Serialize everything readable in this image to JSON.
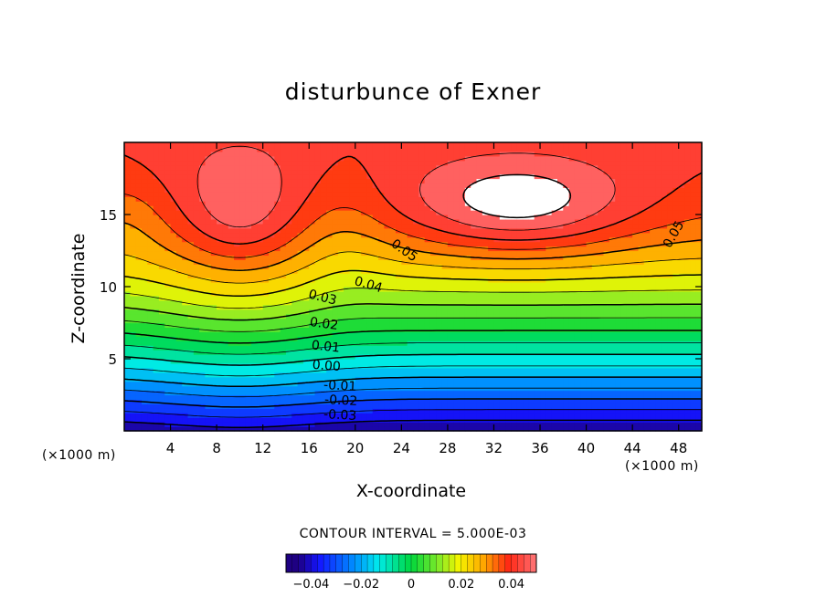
{
  "chart_data": {
    "type": "heatmap",
    "title": "disturbunce of Exner",
    "xlabel": "X-coordinate",
    "ylabel": "Z-coordinate",
    "x_unit": "(×1000 m)",
    "y_unit": "(×1000 m)",
    "xlim": [
      0,
      50
    ],
    "ylim": [
      0,
      20
    ],
    "xticks": [
      4,
      8,
      12,
      16,
      20,
      24,
      28,
      32,
      36,
      40,
      44,
      48
    ],
    "yticks": [
      5,
      10,
      15
    ],
    "contour_interval_text": "CONTOUR INTERVAL = 5.000E-03",
    "contour_interval": 0.005,
    "contour_labels": [
      "0.05",
      "0.05",
      "0.04",
      "0.03",
      "0.02",
      "0.01",
      "0.00",
      "-0.01",
      "-0.02",
      "-0.03"
    ],
    "field_range": [
      -0.045,
      0.055
    ],
    "colorbar": {
      "range": [
        -0.05,
        0.05
      ],
      "ticks": [
        -0.04,
        -0.02,
        0,
        0.02,
        0.04
      ],
      "tick_labels": [
        "−0.04",
        "−0.02",
        "0",
        "0.02",
        "0.04"
      ]
    },
    "grid": false
  },
  "colors": {
    "max_region": "#ffffff",
    "high": "#ff2a1a",
    "low": "#1a10ff"
  }
}
